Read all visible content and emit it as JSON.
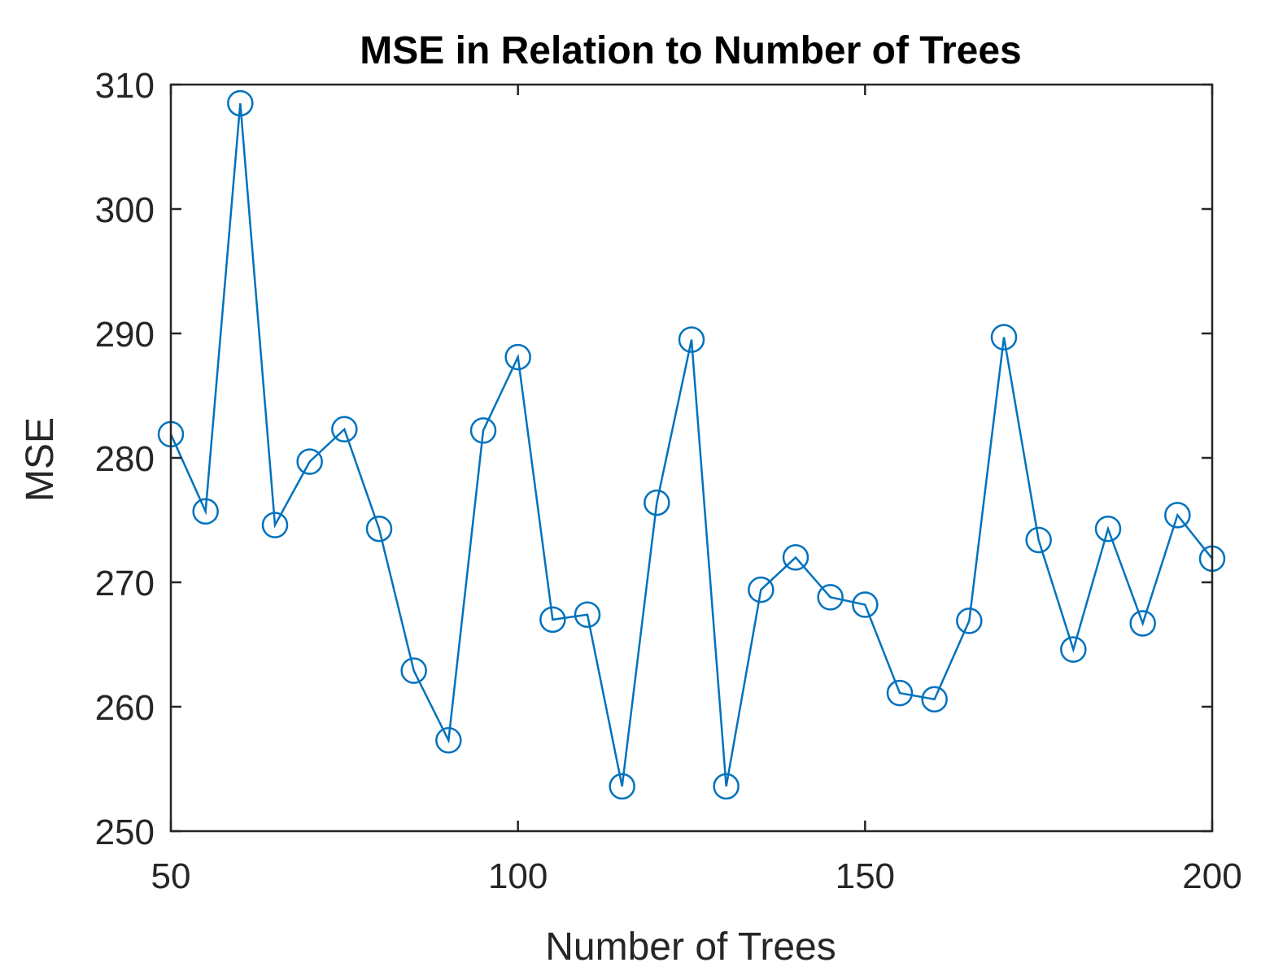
{
  "chart_data": {
    "type": "line",
    "title": "MSE in Relation to Number of Trees",
    "xlabel": "Number of Trees",
    "ylabel": "MSE",
    "xlim": [
      50,
      200
    ],
    "ylim": [
      250,
      310
    ],
    "xticks": [
      50,
      100,
      150,
      200
    ],
    "yticks": [
      250,
      260,
      270,
      280,
      290,
      300,
      310
    ],
    "grid": false,
    "marker": "circle",
    "series": [
      {
        "name": "MSE",
        "color": "#0072BD",
        "x": [
          50,
          55,
          60,
          65,
          70,
          75,
          80,
          85,
          90,
          95,
          100,
          105,
          110,
          115,
          120,
          125,
          130,
          135,
          140,
          145,
          150,
          155,
          160,
          165,
          170,
          175,
          180,
          185,
          190,
          195,
          200
        ],
        "y": [
          281.9,
          275.7,
          308.5,
          274.6,
          279.7,
          282.3,
          274.3,
          262.9,
          257.3,
          282.2,
          288.1,
          267.0,
          267.4,
          253.6,
          276.4,
          289.5,
          253.6,
          269.4,
          272.0,
          268.8,
          268.2,
          261.1,
          260.6,
          266.9,
          289.7,
          273.4,
          264.6,
          274.3,
          266.7,
          275.4,
          271.9
        ]
      }
    ]
  }
}
